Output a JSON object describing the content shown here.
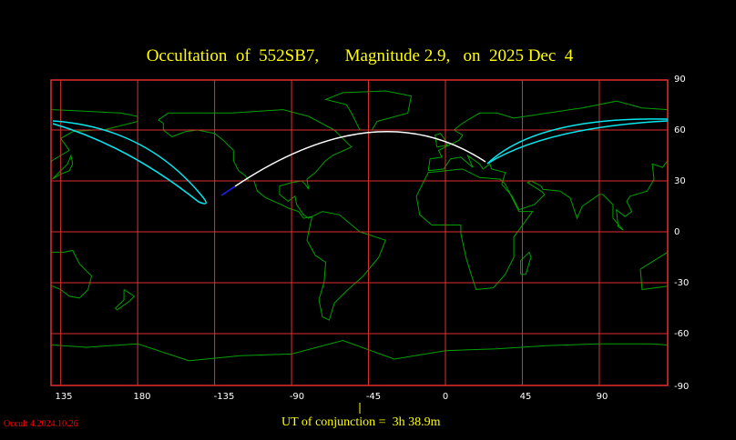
{
  "title": "Occultation  of  552SB7,      Magnitude 2.9,   on  2025 Dec  4",
  "x_axis_labels": [
    "135",
    "180",
    "-135",
    "-90",
    "-45",
    "0",
    "45",
    "90"
  ],
  "y_axis_labels": [
    "90",
    "60",
    "30",
    "0",
    "-30",
    "-60",
    "-90"
  ],
  "ut_conjunction": "UT of conjunction =  3h 38.9m",
  "version": "Occult 4.2024.10.26",
  "colors": {
    "title": "#ffff00",
    "grid": "#e03030",
    "coast": "#00a000",
    "path_center": "#ffffff",
    "path_limits": "#00e8f0",
    "path_prior": "#2020ff"
  }
}
